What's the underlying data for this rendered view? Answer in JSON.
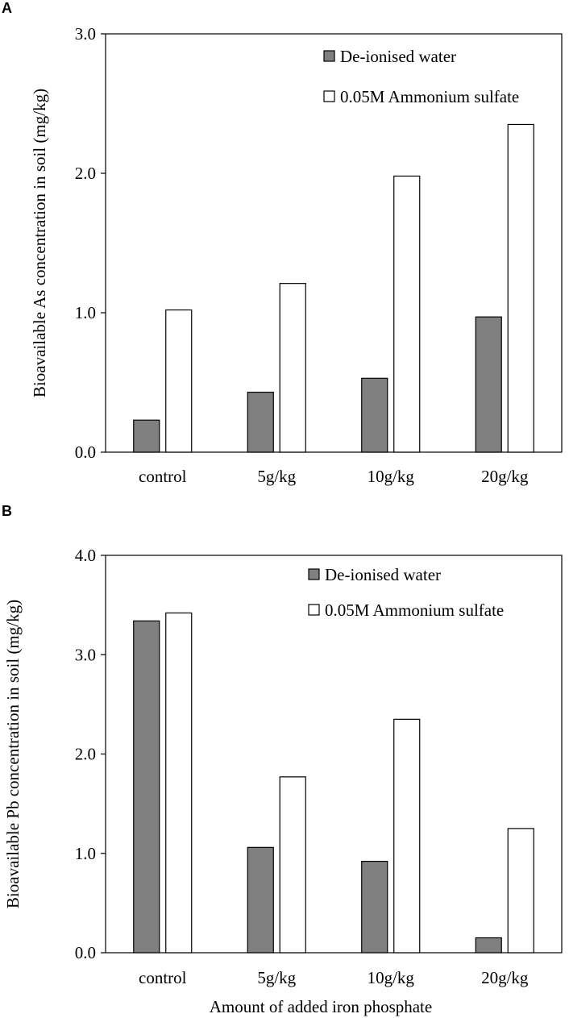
{
  "colors": {
    "deionised": "#808080",
    "ammonium": "#ffffff",
    "stroke": "#000000"
  },
  "chart_data": [
    {
      "panel": "A",
      "type": "bar",
      "categories": [
        "control",
        "5g/kg",
        "10g/kg",
        "20g/kg"
      ],
      "series": [
        {
          "name": "De-ionised water",
          "values": [
            0.23,
            0.43,
            0.53,
            0.97
          ]
        },
        {
          "name": "0.05M Ammonium sulfate",
          "values": [
            1.02,
            1.21,
            1.98,
            2.35
          ]
        }
      ],
      "ylim": [
        0,
        3
      ],
      "yticks": [
        0,
        1,
        2,
        3
      ],
      "ytick_labels": [
        "0.0",
        "1.0",
        "2.0",
        "3.0"
      ],
      "ylabel": "Bioavailable As concentration in soil (mg/kg)",
      "xlabel": "",
      "legend": "top-right"
    },
    {
      "panel": "B",
      "type": "bar",
      "categories": [
        "control",
        "5g/kg",
        "10g/kg",
        "20g/kg"
      ],
      "series": [
        {
          "name": "De-ionised water",
          "values": [
            3.34,
            1.06,
            0.92,
            0.15
          ]
        },
        {
          "name": "0.05M Ammonium sulfate",
          "values": [
            3.42,
            1.77,
            2.35,
            1.25
          ]
        }
      ],
      "ylim": [
        0,
        4
      ],
      "yticks": [
        0,
        1,
        2,
        3,
        4
      ],
      "ytick_labels": [
        "0.0",
        "1.0",
        "2.0",
        "3.0",
        "4.0"
      ],
      "ylabel": "Bioavailable Pb concentration in soil (mg/kg)",
      "xlabel": "Amount of added iron phosphate",
      "legend": "top-right"
    }
  ]
}
